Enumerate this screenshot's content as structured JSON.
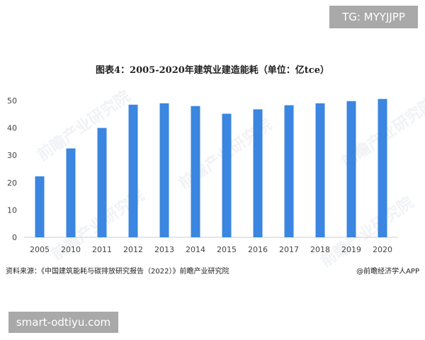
{
  "badges": {
    "top_right": "TG: MYYJJPP",
    "bottom_left": "smart-odtiyu.com"
  },
  "chart_data": {
    "type": "bar",
    "title": "图表4：2005-2020年建筑业建造能耗（单位：亿tce）",
    "categories": [
      "2005",
      "2010",
      "2011",
      "2012",
      "2013",
      "2014",
      "2015",
      "2016",
      "2017",
      "2018",
      "2019",
      "2020"
    ],
    "values": [
      22.3,
      32.5,
      40.0,
      48.5,
      49.0,
      48.0,
      45.2,
      46.8,
      48.3,
      49.0,
      49.8,
      50.6
    ],
    "ylim": [
      0,
      50
    ],
    "yticks": [
      0,
      10,
      20,
      30,
      40,
      50
    ],
    "xlabel": "",
    "ylabel": "",
    "grid": false,
    "colors": {
      "bar": "#3a86e0",
      "axis": "#cccccc",
      "text": "#444444"
    }
  },
  "footer": {
    "source": "资料来源：《中国建筑能耗与碳排放研究报告（2022）》前瞻产业研究院",
    "brand": "@前瞻经济学人APP"
  },
  "watermark": "前瞻产业研究院"
}
